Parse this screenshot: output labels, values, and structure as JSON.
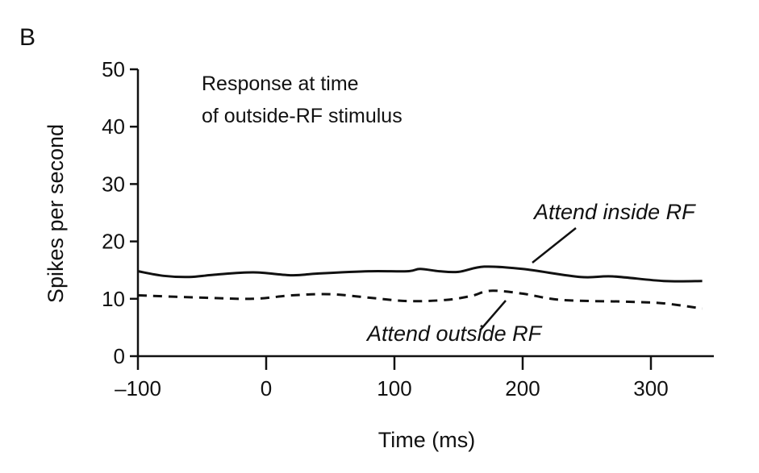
{
  "panel_label": "B",
  "chart_data": {
    "type": "line",
    "title": "Response  at time\nof outside-RF stimulus",
    "title_lines": [
      "Response  at time",
      "of outside-RF stimulus"
    ],
    "xlabel": "Time (ms)",
    "ylabel": "Spikes per second",
    "xlim": [
      -100,
      345
    ],
    "ylim": [
      0,
      50
    ],
    "xticks": [
      -100,
      0,
      100,
      200,
      300
    ],
    "xtick_labels": [
      "–100",
      "0",
      "100",
      "200",
      "300"
    ],
    "yticks": [
      0,
      10,
      20,
      30,
      40,
      50
    ],
    "ytick_labels": [
      "0",
      "10",
      "20",
      "30",
      "40",
      "50"
    ],
    "grid": false,
    "series": [
      {
        "name": "Attend inside RF",
        "style": "solid",
        "color": "#111111",
        "x": [
          -100,
          -80,
          -60,
          -40,
          -10,
          20,
          40,
          80,
          110,
          120,
          135,
          150,
          170,
          200,
          245,
          270,
          310,
          340
        ],
        "y": [
          14.8,
          14.0,
          13.8,
          14.2,
          14.6,
          14.1,
          14.4,
          14.8,
          14.8,
          15.2,
          14.8,
          14.7,
          15.6,
          15.2,
          13.8,
          13.9,
          13.1,
          13.1
        ]
      },
      {
        "name": "Attend outside RF",
        "style": "dashed",
        "color": "#111111",
        "x": [
          -100,
          -50,
          -10,
          20,
          50,
          80,
          110,
          140,
          160,
          175,
          200,
          230,
          280,
          310,
          340
        ],
        "y": [
          10.6,
          10.2,
          10.0,
          10.6,
          10.8,
          10.2,
          9.6,
          9.8,
          10.5,
          11.4,
          10.9,
          9.8,
          9.5,
          9.2,
          8.3
        ]
      }
    ],
    "annotations": [
      "Attend inside RF",
      "Attend outside RF"
    ]
  }
}
